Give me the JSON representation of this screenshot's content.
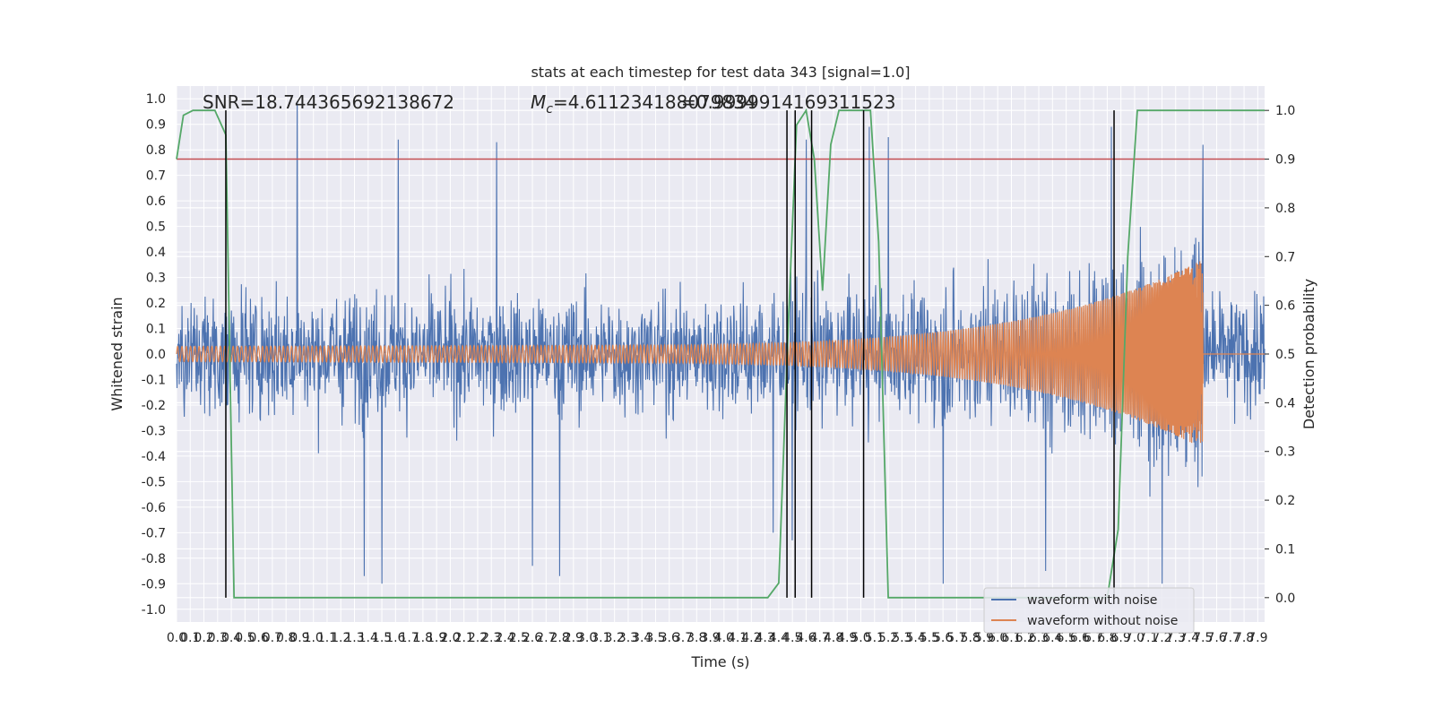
{
  "chart_data": {
    "type": "line",
    "title": "stats at each timestep for test data 343 [signal=1.0]",
    "xlabel": "Time (s)",
    "ylabel_left": "Whitened strain",
    "ylabel_right": "Detection probability",
    "xlim": [
      0.0,
      7.95
    ],
    "ylim_left": [
      -1.05,
      1.05
    ],
    "ylim_right": [
      -0.05,
      1.05
    ],
    "x_ticks": [
      0.0,
      0.1,
      0.2,
      0.3,
      0.4,
      0.5,
      0.6,
      0.7,
      0.8,
      0.9,
      1.0,
      1.1,
      1.2,
      1.3,
      1.4,
      1.5,
      1.6,
      1.7,
      1.8,
      1.9,
      2.0,
      2.1,
      2.2,
      2.3,
      2.4,
      2.5,
      2.6,
      2.7,
      2.8,
      2.9,
      3.0,
      3.1,
      3.2,
      3.3,
      3.4,
      3.5,
      3.6,
      3.7,
      3.8,
      3.9,
      4.0,
      4.1,
      4.2,
      4.3,
      4.4,
      4.5,
      4.6,
      4.7,
      4.8,
      4.9,
      5.0,
      5.1,
      5.2,
      5.3,
      5.4,
      5.5,
      5.6,
      5.7,
      5.8,
      5.9,
      6.0,
      6.1,
      6.2,
      6.3,
      6.4,
      6.5,
      6.6,
      6.7,
      6.8,
      6.9,
      7.0,
      7.1,
      7.2,
      7.3,
      7.4,
      7.5,
      7.6,
      7.7,
      7.8,
      7.9
    ],
    "y_ticks_left": [
      -1.0,
      -0.9,
      -0.8,
      -0.7,
      -0.6,
      -0.5,
      -0.4,
      -0.3,
      -0.2,
      -0.1,
      0.0,
      0.1,
      0.2,
      0.3,
      0.4,
      0.5,
      0.6,
      0.7,
      0.8,
      0.9,
      1.0
    ],
    "y_ticks_right": [
      0.0,
      0.1,
      0.2,
      0.3,
      0.4,
      0.5,
      0.6,
      0.7,
      0.8,
      0.9,
      1.0
    ],
    "annotations": [
      "SNR=18.744365692138672",
      "M_c=4.611234188079834",
      "=0.9999914169311523"
    ],
    "threshold": {
      "value": 0.9,
      "color": "#c44e52"
    },
    "noise": {
      "std": 0.16,
      "color": "#4c72b0",
      "spikes": [
        [
          0.88,
          0.99
        ],
        [
          1.62,
          0.84
        ],
        [
          2.34,
          0.83
        ],
        [
          4.6,
          0.84
        ],
        [
          5.06,
          0.89
        ],
        [
          5.2,
          0.85
        ],
        [
          6.83,
          0.89
        ],
        [
          7.2,
          0.84
        ],
        [
          7.5,
          0.82
        ],
        [
          1.5,
          -0.9
        ],
        [
          1.37,
          -0.87
        ],
        [
          2.8,
          -0.87
        ],
        [
          5.6,
          -0.9
        ],
        [
          7.2,
          -0.9
        ],
        [
          4.36,
          -0.7
        ],
        [
          4.5,
          -0.73
        ],
        [
          6.35,
          -0.85
        ],
        [
          2.6,
          -0.83
        ]
      ]
    },
    "clean": {
      "tc": 7.5,
      "amp0": 0.03,
      "amp_end": 0.37,
      "color": "#dd8452"
    },
    "series": [
      {
        "name": "waveform with noise",
        "color": "#4c72b0"
      },
      {
        "name": "waveform without noise",
        "color": "#dd8452"
      }
    ],
    "detection": {
      "color": "#55a868",
      "x": [
        0.0,
        0.05,
        0.12,
        0.2,
        0.28,
        0.36,
        0.42,
        0.5,
        1.0,
        2.0,
        3.0,
        4.0,
        4.32,
        4.4,
        4.47,
        4.53,
        4.6,
        4.66,
        4.72,
        4.78,
        4.84,
        4.9,
        5.0,
        5.07,
        5.13,
        5.2,
        5.6,
        6.0,
        6.4,
        6.8,
        6.88,
        6.95,
        7.02,
        7.5,
        7.95
      ],
      "y": [
        0.9,
        0.99,
        1.0,
        1.0,
        1.0,
        0.95,
        0.0,
        0.0,
        0.0,
        0.0,
        0.0,
        0.0,
        0.0,
        0.03,
        0.56,
        0.97,
        1.0,
        0.9,
        0.63,
        0.93,
        1.0,
        1.0,
        1.0,
        1.0,
        0.73,
        0.0,
        0.0,
        0.0,
        0.0,
        0.0,
        0.14,
        0.7,
        1.0,
        1.0,
        1.0
      ]
    },
    "vlines": [
      0.36,
      4.46,
      4.52,
      4.64,
      5.02,
      6.85
    ],
    "legend": {
      "placement": "lower-right"
    },
    "grid": true
  }
}
